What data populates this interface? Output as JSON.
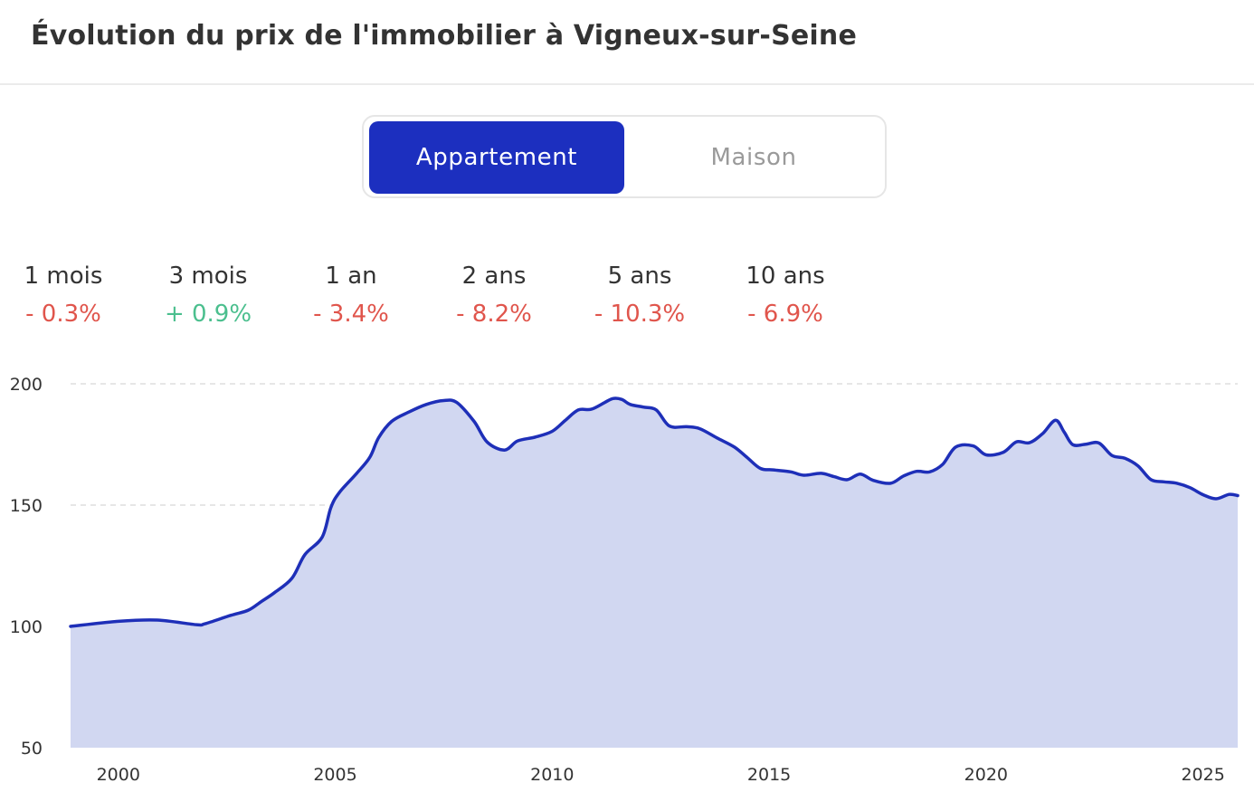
{
  "title": "Évolution du prix de l'immobilier à Vigneux-sur-Seine",
  "toggle": {
    "options": [
      {
        "label": "Appartement",
        "active": true
      },
      {
        "label": "Maison",
        "active": false
      }
    ]
  },
  "stats": [
    {
      "label": "1 mois",
      "value": "- 0.3%",
      "trend": "down"
    },
    {
      "label": "3 mois",
      "value": "+ 0.9%",
      "trend": "up"
    },
    {
      "label": "1 an",
      "value": "- 3.4%",
      "trend": "down"
    },
    {
      "label": "2 ans",
      "value": "- 8.2%",
      "trend": "down"
    },
    {
      "label": "5 ans",
      "value": "- 10.3%",
      "trend": "down"
    },
    {
      "label": "10 ans",
      "value": "- 6.9%",
      "trend": "down"
    }
  ],
  "colors": {
    "accent": "#1c2fbf",
    "line": "#1e2fb8",
    "area": "#d1d7f1",
    "up": "#4bbf8e",
    "down": "#e0554c",
    "grid": "#dddddd"
  },
  "chart_data": {
    "type": "area",
    "title": "",
    "xlabel": "",
    "ylabel": "",
    "xlim": [
      1998.9,
      2025.8
    ],
    "ylim": [
      50,
      200
    ],
    "xticks": [
      "2000",
      "2005",
      "2010",
      "2015",
      "2020",
      "2025"
    ],
    "yticks": [
      "200",
      "150",
      "100",
      "50"
    ],
    "grid": true,
    "series": [
      {
        "x": [
          1998.9,
          2000.0,
          2000.9,
          2001.8,
          2002.0,
          2002.6,
          2003.0,
          2003.3,
          2003.6,
          2004.0,
          2004.3,
          2004.7,
          2004.9,
          2005.1,
          2005.5,
          2005.8,
          2006.0,
          2006.3,
          2006.7,
          2007.1,
          2007.5,
          2007.8,
          2008.2,
          2008.5,
          2008.9,
          2009.2,
          2009.6,
          2010.0,
          2010.3,
          2010.6,
          2010.9,
          2011.2,
          2011.4,
          2011.6,
          2011.8,
          2012.1,
          2012.4,
          2012.7,
          2013.1,
          2013.4,
          2013.8,
          2014.2,
          2014.5,
          2014.8,
          2015.1,
          2015.5,
          2015.8,
          2016.2,
          2016.5,
          2016.8,
          2017.1,
          2017.4,
          2017.8,
          2018.1,
          2018.4,
          2018.7,
          2019.0,
          2019.3,
          2019.7,
          2020.0,
          2020.4,
          2020.7,
          2021.0,
          2021.3,
          2021.6,
          2021.8,
          2022.0,
          2022.3,
          2022.6,
          2022.9,
          2023.2,
          2023.5,
          2023.8,
          2024.1,
          2024.4,
          2024.7,
          2025.0,
          2025.3,
          2025.6,
          2025.8
        ],
        "values": [
          100.0,
          102.1,
          102.6,
          100.7,
          101.1,
          104.6,
          106.7,
          110.3,
          113.9,
          119.8,
          129.6,
          136.8,
          149.0,
          155.3,
          163.2,
          169.8,
          177.8,
          184.5,
          188.4,
          191.5,
          193.1,
          192.3,
          184.5,
          176.0,
          172.7,
          176.4,
          178.0,
          180.4,
          184.9,
          189.2,
          189.5,
          192.2,
          193.9,
          193.6,
          191.5,
          190.4,
          189.2,
          182.6,
          182.3,
          181.5,
          177.7,
          173.9,
          169.5,
          165.1,
          164.5,
          163.7,
          162.3,
          163.1,
          161.7,
          160.5,
          162.8,
          160.2,
          159.0,
          162.0,
          163.9,
          163.7,
          166.8,
          173.9,
          174.4,
          170.7,
          171.8,
          176.1,
          175.7,
          179.4,
          185.0,
          180.1,
          174.9,
          175.1,
          175.6,
          170.5,
          169.3,
          166.2,
          160.5,
          159.6,
          159.0,
          157.2,
          154.3,
          152.6,
          154.4,
          153.9
        ]
      }
    ]
  }
}
